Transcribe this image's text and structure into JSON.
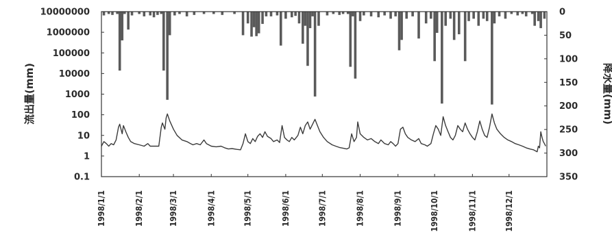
{
  "chart_data": {
    "type": "line+bar",
    "title": "",
    "ylabel_left": "流出量(mm)",
    "ylabel_right": "降水量(mm)",
    "left_axis": {
      "scale": "log",
      "ylim": [
        0.1,
        10000000
      ],
      "ticks": [
        "10000000",
        "1000000",
        "100000",
        "10000",
        "1000",
        "100",
        "10",
        "1",
        "0.1"
      ]
    },
    "right_axis": {
      "scale": "linear",
      "inverted": true,
      "ylim": [
        0,
        350
      ],
      "ticks": [
        "0",
        "50",
        "100",
        "150",
        "200",
        "250",
        "300",
        "350"
      ]
    },
    "x_axis": {
      "start": "1998/1/1",
      "end": "1998/12/31",
      "ticks": [
        "1998/1/1",
        "1998/2/1",
        "1998/3/1",
        "1998/4/1",
        "1998/5/1",
        "1998/6/1",
        "1998/7/1",
        "1998/8/1",
        "1998/9/1",
        "1998/10/1",
        "1998/11/1",
        "1998/12/1"
      ]
    },
    "grid": false,
    "series": [
      {
        "kind": "line",
        "axis": "left",
        "points": [
          [
            "1998/1/1",
            3
          ],
          [
            "1998/1/3",
            5
          ],
          [
            "1998/1/5",
            4
          ],
          [
            "1998/1/7",
            3
          ],
          [
            "1998/1/9",
            4
          ],
          [
            "1998/1/11",
            3.5
          ],
          [
            "1998/1/13",
            6
          ],
          [
            "1998/1/15",
            25
          ],
          [
            "1998/1/16",
            35
          ],
          [
            "1998/1/18",
            12
          ],
          [
            "1998/1/19",
            30
          ],
          [
            "1998/1/21",
            15
          ],
          [
            "1998/1/23",
            8
          ],
          [
            "1998/1/25",
            5
          ],
          [
            "1998/1/28",
            4
          ],
          [
            "1998/2/1",
            3.5
          ],
          [
            "1998/2/5",
            3
          ],
          [
            "1998/2/8",
            4
          ],
          [
            "1998/2/10",
            3
          ],
          [
            "1998/2/14",
            3
          ],
          [
            "1998/2/17",
            3
          ],
          [
            "1998/2/19",
            25
          ],
          [
            "1998/2/20",
            40
          ],
          [
            "1998/2/22",
            20
          ],
          [
            "1998/2/23",
            70
          ],
          [
            "1998/2/24",
            110
          ],
          [
            "1998/2/26",
            50
          ],
          [
            "1998/3/1",
            20
          ],
          [
            "1998/3/4",
            10
          ],
          [
            "1998/3/8",
            6
          ],
          [
            "1998/3/12",
            5
          ],
          [
            "1998/3/15",
            4
          ],
          [
            "1998/3/17",
            3.5
          ],
          [
            "1998/3/20",
            4
          ],
          [
            "1998/3/23",
            3.5
          ],
          [
            "1998/3/26",
            6
          ],
          [
            "1998/3/28",
            4
          ],
          [
            "1998/4/1",
            3
          ],
          [
            "1998/4/5",
            2.8
          ],
          [
            "1998/4/9",
            3
          ],
          [
            "1998/4/12",
            2.5
          ],
          [
            "1998/4/15",
            2.2
          ],
          [
            "1998/4/18",
            2.3
          ],
          [
            "1998/4/22",
            2.1
          ],
          [
            "1998/4/25",
            2
          ],
          [
            "1998/4/27",
            4
          ],
          [
            "1998/4/29",
            12
          ],
          [
            "1998/5/1",
            5
          ],
          [
            "1998/5/3",
            4
          ],
          [
            "1998/5/5",
            7
          ],
          [
            "1998/5/7",
            5
          ],
          [
            "1998/5/9",
            9
          ],
          [
            "1998/5/11",
            12
          ],
          [
            "1998/5/13",
            8
          ],
          [
            "1998/5/15",
            15
          ],
          [
            "1998/5/17",
            9
          ],
          [
            "1998/5/20",
            7
          ],
          [
            "1998/5/22",
            5
          ],
          [
            "1998/5/25",
            6
          ],
          [
            "1998/5/27",
            4.5
          ],
          [
            "1998/5/29",
            30
          ],
          [
            "1998/5/31",
            8
          ],
          [
            "1998/6/2",
            6
          ],
          [
            "1998/6/4",
            5
          ],
          [
            "1998/6/6",
            8
          ],
          [
            "1998/6/8",
            6
          ],
          [
            "1998/6/11",
            10
          ],
          [
            "1998/6/13",
            25
          ],
          [
            "1998/6/15",
            12
          ],
          [
            "1998/6/17",
            30
          ],
          [
            "1998/6/19",
            45
          ],
          [
            "1998/6/21",
            20
          ],
          [
            "1998/6/23",
            35
          ],
          [
            "1998/6/25",
            60
          ],
          [
            "1998/6/27",
            30
          ],
          [
            "1998/6/29",
            15
          ],
          [
            "1998/7/2",
            8
          ],
          [
            "1998/7/5",
            5
          ],
          [
            "1998/7/9",
            3.5
          ],
          [
            "1998/7/12",
            3
          ],
          [
            "1998/7/15",
            2.6
          ],
          [
            "1998/7/18",
            2.4
          ],
          [
            "1998/7/21",
            2.2
          ],
          [
            "1998/7/23",
            2.5
          ],
          [
            "1998/7/25",
            12
          ],
          [
            "1998/7/27",
            5
          ],
          [
            "1998/7/29",
            8
          ],
          [
            "1998/7/30",
            45
          ],
          [
            "1998/8/1",
            12
          ],
          [
            "1998/8/4",
            8
          ],
          [
            "1998/8/7",
            6
          ],
          [
            "1998/8/10",
            7
          ],
          [
            "1998/8/13",
            5
          ],
          [
            "1998/8/16",
            4
          ],
          [
            "1998/8/18",
            6
          ],
          [
            "1998/8/21",
            4
          ],
          [
            "1998/8/24",
            3.5
          ],
          [
            "1998/8/26",
            5
          ],
          [
            "1998/8/28",
            4
          ],
          [
            "1998/8/30",
            3
          ],
          [
            "1998/9/1",
            4
          ],
          [
            "1998/9/3",
            20
          ],
          [
            "1998/9/5",
            25
          ],
          [
            "1998/9/7",
            12
          ],
          [
            "1998/9/9",
            8
          ],
          [
            "1998/9/12",
            6
          ],
          [
            "1998/9/15",
            5
          ],
          [
            "1998/9/18",
            7
          ],
          [
            "1998/9/20",
            4
          ],
          [
            "1998/9/23",
            3.5
          ],
          [
            "1998/9/25",
            3
          ],
          [
            "1998/9/28",
            4
          ],
          [
            "1998/9/30",
            12
          ],
          [
            "1998/10/2",
            30
          ],
          [
            "1998/10/4",
            20
          ],
          [
            "1998/10/6",
            10
          ],
          [
            "1998/10/8",
            80
          ],
          [
            "1998/10/10",
            30
          ],
          [
            "1998/10/12",
            15
          ],
          [
            "1998/10/14",
            8
          ],
          [
            "1998/10/16",
            6
          ],
          [
            "1998/10/18",
            10
          ],
          [
            "1998/10/20",
            30
          ],
          [
            "1998/10/22",
            20
          ],
          [
            "1998/10/24",
            15
          ],
          [
            "1998/10/26",
            40
          ],
          [
            "1998/10/28",
            20
          ],
          [
            "1998/10/30",
            12
          ],
          [
            "1998/11/1",
            8
          ],
          [
            "1998/11/3",
            6
          ],
          [
            "1998/11/5",
            15
          ],
          [
            "1998/11/7",
            50
          ],
          [
            "1998/11/9",
            20
          ],
          [
            "1998/11/11",
            10
          ],
          [
            "1998/11/13",
            8
          ],
          [
            "1998/11/15",
            25
          ],
          [
            "1998/11/17",
            110
          ],
          [
            "1998/11/19",
            40
          ],
          [
            "1998/11/21",
            20
          ],
          [
            "1998/11/24",
            12
          ],
          [
            "1998/11/27",
            8
          ],
          [
            "1998/11/30",
            6
          ],
          [
            "1998/12/3",
            5
          ],
          [
            "1998/12/6",
            4
          ],
          [
            "1998/12/9",
            3.5
          ],
          [
            "1998/12/12",
            3
          ],
          [
            "1998/12/15",
            2.5
          ],
          [
            "1998/12/18",
            2.2
          ],
          [
            "1998/12/21",
            2
          ],
          [
            "1998/12/24",
            1.6
          ],
          [
            "1998/12/25",
            3
          ],
          [
            "1998/12/26",
            2.5
          ],
          [
            "1998/12/27",
            15
          ],
          [
            "1998/12/28",
            8
          ],
          [
            "1998/12/29",
            5
          ],
          [
            "1998/12/30",
            4
          ],
          [
            "1998/12/31",
            3
          ]
        ]
      },
      {
        "kind": "bar",
        "axis": "right",
        "bars": [
          [
            "1998/1/3",
            8
          ],
          [
            "1998/1/7",
            5
          ],
          [
            "1998/1/10",
            7
          ],
          [
            "1998/1/14",
            5
          ],
          [
            "1998/1/16",
            125
          ],
          [
            "1998/1/18",
            61
          ],
          [
            "1998/1/20",
            5
          ],
          [
            "1998/1/23",
            38
          ],
          [
            "1998/1/26",
            8
          ],
          [
            "1998/2/1",
            5
          ],
          [
            "1998/2/5",
            10
          ],
          [
            "1998/2/10",
            8
          ],
          [
            "1998/2/13",
            12
          ],
          [
            "1998/2/16",
            7
          ],
          [
            "1998/2/19",
            5
          ],
          [
            "1998/2/21",
            125
          ],
          [
            "1998/2/24",
            187
          ],
          [
            "1998/2/26",
            50
          ],
          [
            "1998/3/2",
            8
          ],
          [
            "1998/3/6",
            5
          ],
          [
            "1998/3/12",
            10
          ],
          [
            "1998/3/18",
            7
          ],
          [
            "1998/3/26",
            5
          ],
          [
            "1998/4/3",
            5
          ],
          [
            "1998/4/10",
            7
          ],
          [
            "1998/4/20",
            5
          ],
          [
            "1998/4/27",
            50
          ],
          [
            "1998/5/1",
            25
          ],
          [
            "1998/5/4",
            53
          ],
          [
            "1998/5/6",
            33
          ],
          [
            "1998/5/8",
            52
          ],
          [
            "1998/5/10",
            46
          ],
          [
            "1998/5/13",
            26
          ],
          [
            "1998/5/16",
            10
          ],
          [
            "1998/5/20",
            10
          ],
          [
            "1998/5/25",
            8
          ],
          [
            "1998/5/28",
            72
          ],
          [
            "1998/6/1",
            15
          ],
          [
            "1998/6/6",
            12
          ],
          [
            "1998/6/9",
            9
          ],
          [
            "1998/6/12",
            25
          ],
          [
            "1998/6/15",
            68
          ],
          [
            "1998/6/17",
            30
          ],
          [
            "1998/6/19",
            115
          ],
          [
            "1998/6/21",
            35
          ],
          [
            "1998/6/23",
            10
          ],
          [
            "1998/6/25",
            180
          ],
          [
            "1998/6/28",
            30
          ],
          [
            "1998/7/5",
            8
          ],
          [
            "1998/7/10",
            5
          ],
          [
            "1998/7/15",
            7
          ],
          [
            "1998/7/18",
            5
          ],
          [
            "1998/7/22",
            5
          ],
          [
            "1998/7/24",
            117
          ],
          [
            "1998/7/26",
            10
          ],
          [
            "1998/7/28",
            142
          ],
          [
            "1998/8/1",
            20
          ],
          [
            "1998/8/4",
            8
          ],
          [
            "1998/8/10",
            10
          ],
          [
            "1998/8/16",
            12
          ],
          [
            "1998/8/21",
            8
          ],
          [
            "1998/8/26",
            15
          ],
          [
            "1998/8/30",
            10
          ],
          [
            "1998/9/2",
            82
          ],
          [
            "1998/9/4",
            60
          ],
          [
            "1998/9/8",
            15
          ],
          [
            "1998/9/13",
            10
          ],
          [
            "1998/9/18",
            57
          ],
          [
            "1998/9/24",
            25
          ],
          [
            "1998/9/28",
            15
          ],
          [
            "1998/10/1",
            105
          ],
          [
            "1998/10/3",
            45
          ],
          [
            "1998/10/7",
            195
          ],
          [
            "1998/10/10",
            30
          ],
          [
            "1998/10/14",
            15
          ],
          [
            "1998/10/17",
            60
          ],
          [
            "1998/10/21",
            48
          ],
          [
            "1998/10/26",
            105
          ],
          [
            "1998/10/29",
            20
          ],
          [
            "1998/11/2",
            15
          ],
          [
            "1998/11/6",
            30
          ],
          [
            "1998/11/10",
            15
          ],
          [
            "1998/11/13",
            20
          ],
          [
            "1998/11/17",
            197
          ],
          [
            "1998/11/19",
            25
          ],
          [
            "1998/11/23",
            10
          ],
          [
            "1998/11/28",
            15
          ],
          [
            "1998/12/3",
            5
          ],
          [
            "1998/12/8",
            8
          ],
          [
            "1998/12/12",
            5
          ],
          [
            "1998/12/15",
            10
          ],
          [
            "1998/12/20",
            5
          ],
          [
            "1998/12/22",
            30
          ],
          [
            "1998/12/25",
            20
          ],
          [
            "1998/12/27",
            35
          ],
          [
            "1998/12/30",
            15
          ]
        ]
      }
    ],
    "colors": {
      "line": "#3a3a3a",
      "bar": "#5a5a5a",
      "axis": "#333333"
    }
  }
}
